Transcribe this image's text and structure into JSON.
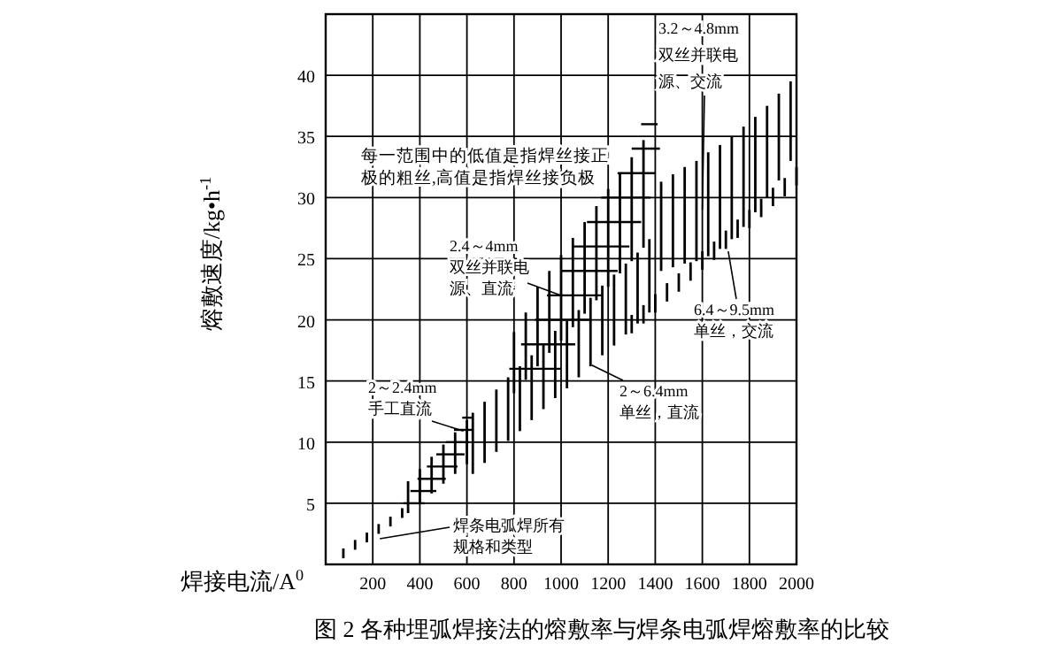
{
  "chart_data": {
    "type": "bar",
    "title": "图 2   各种埋弧焊接法的熔敷率与焊条电弧焊熔敷率的比较",
    "xlabel": "焊接电流/A$^{0}$",
    "ylabel": "熔敷速度/kg•h$^{-1}$",
    "xlim": [
      0,
      2000
    ],
    "xticks": [
      200,
      400,
      600,
      800,
      1000,
      1200,
      1400,
      1600,
      1800,
      2000
    ],
    "ylim": [
      0,
      45
    ],
    "yticks": [
      5,
      10,
      15,
      20,
      25,
      30,
      35,
      40
    ],
    "grid": true,
    "series": [
      {
        "type": "line",
        "color": "#000000",
        "x": [
          330,
          420
        ],
        "values": [
          5,
          5
        ]
      },
      {
        "type": "line",
        "color": "#000000",
        "x": [
          360,
          470
        ],
        "values": [
          6,
          6
        ]
      },
      {
        "type": "line",
        "color": "#000000",
        "x": [
          390,
          510
        ],
        "values": [
          7,
          7
        ]
      },
      {
        "type": "line",
        "color": "#000000",
        "x": [
          430,
          560
        ],
        "values": [
          8,
          8
        ]
      },
      {
        "type": "line",
        "color": "#000000",
        "x": [
          470,
          590
        ],
        "values": [
          9,
          9
        ]
      },
      {
        "type": "line",
        "color": "#000000",
        "x": [
          510,
          610
        ],
        "values": [
          10,
          10
        ]
      },
      {
        "type": "line",
        "color": "#000000",
        "x": [
          545,
          625
        ],
        "values": [
          11,
          11
        ]
      },
      {
        "type": "line",
        "color": "#000000",
        "x": [
          580,
          620
        ],
        "values": [
          12,
          12
        ]
      },
      {
        "type": "line",
        "color": "#000000",
        "x": [
          780,
          1000
        ],
        "values": [
          16,
          16
        ]
      },
      {
        "type": "line",
        "color": "#000000",
        "x": [
          830,
          1060
        ],
        "values": [
          18,
          18
        ]
      },
      {
        "type": "line",
        "color": "#000000",
        "x": [
          890,
          1120
        ],
        "values": [
          20,
          20
        ]
      },
      {
        "type": "line",
        "color": "#000000",
        "x": [
          940,
          1180
        ],
        "values": [
          22,
          22
        ]
      },
      {
        "type": "line",
        "color": "#000000",
        "x": [
          1000,
          1240
        ],
        "values": [
          24,
          24
        ]
      },
      {
        "type": "line",
        "color": "#000000",
        "x": [
          1050,
          1290
        ],
        "values": [
          26,
          26
        ]
      },
      {
        "type": "line",
        "color": "#000000",
        "x": [
          1110,
          1340
        ],
        "values": [
          28,
          28
        ]
      },
      {
        "type": "line",
        "color": "#000000",
        "x": [
          1170,
          1380
        ],
        "values": [
          30,
          30
        ]
      },
      {
        "type": "line",
        "color": "#000000",
        "x": [
          1240,
          1400
        ],
        "values": [
          32,
          32
        ]
      },
      {
        "type": "line",
        "color": "#000000",
        "x": [
          1300,
          1420
        ],
        "values": [
          34,
          34
        ]
      },
      {
        "type": "line",
        "color": "#000000",
        "x": [
          1340,
          1410
        ],
        "values": [
          36,
          36
        ]
      },
      {
        "color": "#000000",
        "x": [
          75,
          125,
          175,
          225,
          275,
          325
        ],
        "base": [
          0.5,
          1.2,
          1.8,
          2.5,
          3.1,
          3.8
        ],
        "values": [
          0.8,
          0.8,
          0.8,
          0.8,
          0.8,
          0.8
        ]
      },
      {
        "color": "#000000",
        "x": [
          350,
          400,
          450,
          500,
          550,
          600
        ],
        "base": [
          4.2,
          5.0,
          5.8,
          6.6,
          7.4,
          8.2
        ],
        "values": [
          2.6,
          2.8,
          3.0,
          3.2,
          3.4,
          3.6
        ]
      },
      {
        "color": "#000000",
        "x": [
          625,
          675,
          725,
          775,
          825,
          875,
          925,
          975,
          1025,
          1075,
          1125,
          1175,
          1225,
          1275,
          1325,
          1375
        ],
        "base": [
          7.4,
          8.3,
          9.2,
          10.1,
          10.9,
          11.8,
          12.7,
          13.6,
          14.4,
          15.3,
          16.2,
          17.1,
          17.9,
          18.8,
          19.7,
          20.6
        ],
        "values": [
          5,
          5,
          5.1,
          5.2,
          5.3,
          5.3,
          5.3,
          5.5,
          5.5,
          5.5,
          5.6,
          5.7,
          5.8,
          5.8,
          5.8,
          6
        ]
      },
      {
        "color": "#000000",
        "x": [
          800,
          850,
          900,
          950,
          1000,
          1050,
          1100,
          1150,
          1200,
          1250,
          1300,
          1350
        ],
        "base": [
          14,
          15.1,
          16.2,
          17.3,
          18.3,
          19.4,
          20.5,
          21.6,
          22.7,
          23.8,
          24.8,
          25.9
        ],
        "values": [
          5,
          5.5,
          6.5,
          6.7,
          7,
          7.3,
          7.5,
          7.7,
          8,
          8.2,
          8.5,
          8.8
        ]
      },
      {
        "color": "#000000",
        "x": [
          1300,
          1350,
          1400,
          1450,
          1500,
          1550,
          1600,
          1650,
          1700,
          1750,
          1800,
          1850,
          1900,
          1950,
          2000
        ],
        "base": [
          18.9,
          19.7,
          20.6,
          21.5,
          22.3,
          23.2,
          24.1,
          24.9,
          25.8,
          26.7,
          27.5,
          28.4,
          29.3,
          30.1,
          31
        ],
        "values": [
          1.5,
          1.5,
          1.5,
          1.5,
          1.5,
          1.5,
          1.5,
          1.5,
          1.5,
          1.5,
          1.5,
          1.5,
          1.5,
          1.5,
          1.5
        ]
      },
      {
        "color": "#000000",
        "x": [
          1425,
          1475,
          1525,
          1575,
          1625,
          1675,
          1725,
          1775,
          1825,
          1875,
          1925,
          1975
        ],
        "base": [
          24,
          24.3,
          24.6,
          24.8,
          25.2,
          25.8,
          26.6,
          27.6,
          28.8,
          30,
          31.4,
          33
        ],
        "values": [
          7.3,
          7.6,
          7.9,
          8.2,
          8.5,
          8.5,
          8.4,
          8.2,
          7.8,
          7.5,
          7.1,
          6.5
        ]
      }
    ],
    "annotations": [
      "每一范围中的低值是指焊丝接正极的粗丝,高值是指焊丝接负极",
      {
        "text": "3.2～4.8mm双丝并联电源、交流",
        "x": 1600,
        "y": 29
      },
      {
        "text": "2.4～4mm双丝并联电源、直流",
        "x": 1000,
        "y": 22
      },
      {
        "text": "2～6.4mm单丝，直流",
        "x": 1130,
        "y": 16.3
      },
      {
        "text": "6.4～9.5mm单丝，交流",
        "x": 1710,
        "y": 25.6
      },
      {
        "text": "2～2.4mm手工直流",
        "x": 585,
        "y": 10.9
      },
      {
        "text": "焊条电弧焊所有规格和类型",
        "x": 230,
        "y": 2.1
      }
    ]
  }
}
